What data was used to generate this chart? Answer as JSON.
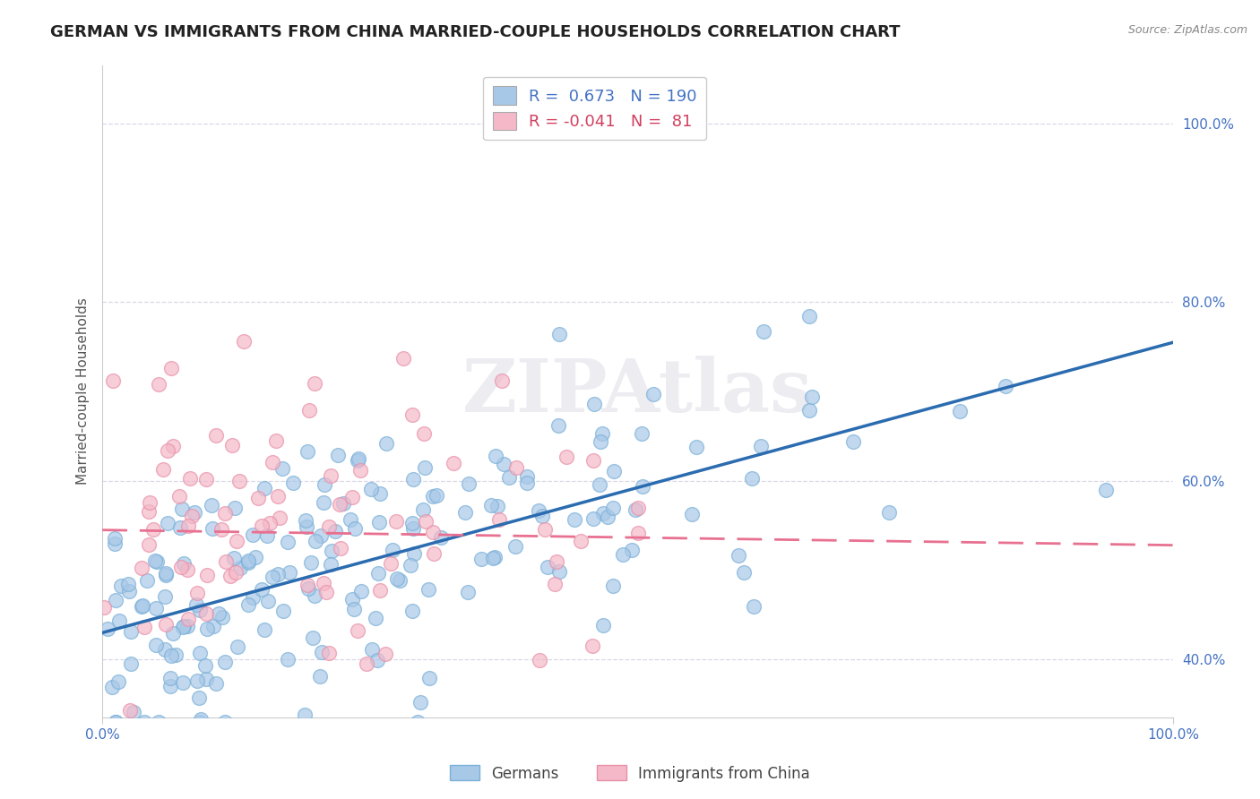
{
  "title": "GERMAN VS IMMIGRANTS FROM CHINA MARRIED-COUPLE HOUSEHOLDS CORRELATION CHART",
  "source": "Source: ZipAtlas.com",
  "ylabel": "Married-couple Households",
  "legend_labels": [
    "Germans",
    "Immigrants from China"
  ],
  "r_german": 0.673,
  "n_german": 190,
  "r_china": -0.041,
  "n_china": 81,
  "blue_scatter_color": "#a8c8e8",
  "blue_edge_color": "#7ab0d8",
  "blue_line_color": "#2b6cb0",
  "pink_scatter_color": "#f4b8c8",
  "pink_edge_color": "#e890a8",
  "pink_line_color": "#e87090",
  "bg_color": "#ffffff",
  "watermark": "ZIPAtlas",
  "grid_color": "#d8d8e8",
  "tick_color": "#4472c4",
  "title_color": "#222222",
  "ylabel_color": "#555555",
  "xlim": [
    0.0,
    1.0
  ],
  "ylim": [
    0.335,
    1.065
  ],
  "xticks": [
    0.0,
    1.0
  ],
  "xticklabels": [
    "0.0%",
    "100.0%"
  ],
  "yticks": [
    0.4,
    0.6,
    0.8,
    1.0
  ],
  "yticklabels": [
    "40.0%",
    "60.0%",
    "80.0%",
    "100.0%"
  ],
  "title_fontsize": 13,
  "axis_label_fontsize": 11,
  "tick_fontsize": 11,
  "legend_fontsize": 13,
  "source_fontsize": 9,
  "blue_line_start_y": 0.43,
  "blue_line_end_y": 0.755,
  "pink_line_start_x": 0.0,
  "pink_line_start_y": 0.545,
  "pink_line_end_x": 1.0,
  "pink_line_end_y": 0.528
}
